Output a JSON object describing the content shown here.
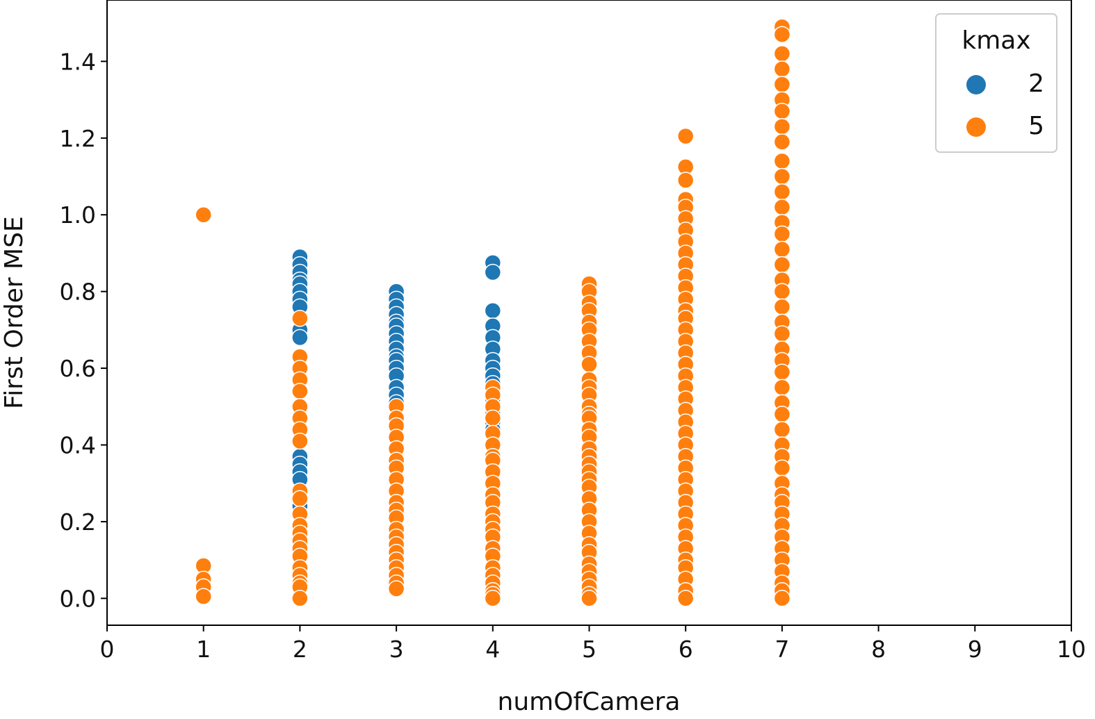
{
  "chart_data": {
    "type": "scatter",
    "title": "",
    "xlabel": "numOfCamera",
    "ylabel": "First Order MSE",
    "xlim": [
      0,
      10
    ],
    "ylim": [
      -0.07,
      1.56
    ],
    "x_ticks": [
      "0",
      "1",
      "2",
      "3",
      "4",
      "5",
      "6",
      "7",
      "8",
      "9",
      "10"
    ],
    "y_ticks": [
      "0.0",
      "0.2",
      "0.4",
      "0.6",
      "0.8",
      "1.0",
      "1.2",
      "1.4"
    ],
    "grid": false,
    "legend": {
      "title": "kmax",
      "placement": "top-right"
    },
    "series": [
      {
        "name": "2",
        "color": "#1f77b4",
        "points": [
          [
            2,
            0.89
          ],
          [
            2,
            0.87
          ],
          [
            2,
            0.85
          ],
          [
            2,
            0.83
          ],
          [
            2,
            0.82
          ],
          [
            2,
            0.8
          ],
          [
            2,
            0.78
          ],
          [
            2,
            0.76
          ],
          [
            2,
            0.7
          ],
          [
            2,
            0.68
          ],
          [
            2,
            0.37
          ],
          [
            2,
            0.35
          ],
          [
            2,
            0.33
          ],
          [
            2,
            0.31
          ],
          [
            2,
            0.24
          ],
          [
            2,
            0.22
          ],
          [
            3,
            0.8
          ],
          [
            3,
            0.78
          ],
          [
            3,
            0.76
          ],
          [
            3,
            0.74
          ],
          [
            3,
            0.72
          ],
          [
            3,
            0.71
          ],
          [
            3,
            0.69
          ],
          [
            3,
            0.67
          ],
          [
            3,
            0.65
          ],
          [
            3,
            0.63
          ],
          [
            3,
            0.62
          ],
          [
            3,
            0.6
          ],
          [
            3,
            0.58
          ],
          [
            3,
            0.55
          ],
          [
            3,
            0.53
          ],
          [
            3,
            0.51
          ],
          [
            4,
            0.875
          ],
          [
            4,
            0.85
          ],
          [
            4,
            0.75
          ],
          [
            4,
            0.71
          ],
          [
            4,
            0.68
          ],
          [
            4,
            0.65
          ],
          [
            4,
            0.62
          ],
          [
            4,
            0.6
          ],
          [
            4,
            0.58
          ],
          [
            4,
            0.56
          ],
          [
            4,
            0.54
          ],
          [
            4,
            0.52
          ],
          [
            4,
            0.5
          ],
          [
            4,
            0.48
          ],
          [
            4,
            0.46
          ],
          [
            4,
            0.44
          ]
        ]
      },
      {
        "name": "5",
        "color": "#ff7f0e",
        "points": [
          [
            1,
            1.0
          ],
          [
            1,
            0.085
          ],
          [
            1,
            0.05
          ],
          [
            1,
            0.03
          ],
          [
            1,
            0.005
          ],
          [
            2,
            0.73
          ],
          [
            2,
            0.63
          ],
          [
            2,
            0.6
          ],
          [
            2,
            0.57
          ],
          [
            2,
            0.54
          ],
          [
            2,
            0.5
          ],
          [
            2,
            0.47
          ],
          [
            2,
            0.44
          ],
          [
            2,
            0.41
          ],
          [
            2,
            0.28
          ],
          [
            2,
            0.26
          ],
          [
            2,
            0.22
          ],
          [
            2,
            0.19
          ],
          [
            2,
            0.17
          ],
          [
            2,
            0.15
          ],
          [
            2,
            0.13
          ],
          [
            2,
            0.11
          ],
          [
            2,
            0.08
          ],
          [
            2,
            0.06
          ],
          [
            2,
            0.04
          ],
          [
            2,
            0.03
          ],
          [
            2,
            0.0
          ],
          [
            3,
            0.5
          ],
          [
            3,
            0.47
          ],
          [
            3,
            0.45
          ],
          [
            3,
            0.42
          ],
          [
            3,
            0.39
          ],
          [
            3,
            0.36
          ],
          [
            3,
            0.34
          ],
          [
            3,
            0.31
          ],
          [
            3,
            0.28
          ],
          [
            3,
            0.25
          ],
          [
            3,
            0.23
          ],
          [
            3,
            0.21
          ],
          [
            3,
            0.18
          ],
          [
            3,
            0.16
          ],
          [
            3,
            0.14
          ],
          [
            3,
            0.12
          ],
          [
            3,
            0.1
          ],
          [
            3,
            0.08
          ],
          [
            3,
            0.06
          ],
          [
            3,
            0.04
          ],
          [
            3,
            0.025
          ],
          [
            4,
            0.55
          ],
          [
            4,
            0.53
          ],
          [
            4,
            0.5
          ],
          [
            4,
            0.47
          ],
          [
            4,
            0.43
          ],
          [
            4,
            0.4
          ],
          [
            4,
            0.37
          ],
          [
            4,
            0.36
          ],
          [
            4,
            0.33
          ],
          [
            4,
            0.3
          ],
          [
            4,
            0.27
          ],
          [
            4,
            0.25
          ],
          [
            4,
            0.22
          ],
          [
            4,
            0.2
          ],
          [
            4,
            0.18
          ],
          [
            4,
            0.16
          ],
          [
            4,
            0.13
          ],
          [
            4,
            0.11
          ],
          [
            4,
            0.08
          ],
          [
            4,
            0.06
          ],
          [
            4,
            0.04
          ],
          [
            4,
            0.02
          ],
          [
            4,
            0.01
          ],
          [
            4,
            0.0
          ],
          [
            5,
            0.82
          ],
          [
            5,
            0.8
          ],
          [
            5,
            0.77
          ],
          [
            5,
            0.75
          ],
          [
            5,
            0.72
          ],
          [
            5,
            0.7
          ],
          [
            5,
            0.67
          ],
          [
            5,
            0.64
          ],
          [
            5,
            0.61
          ],
          [
            5,
            0.57
          ],
          [
            5,
            0.55
          ],
          [
            5,
            0.53
          ],
          [
            5,
            0.5
          ],
          [
            5,
            0.48
          ],
          [
            5,
            0.47
          ],
          [
            5,
            0.44
          ],
          [
            5,
            0.42
          ],
          [
            5,
            0.39
          ],
          [
            5,
            0.37
          ],
          [
            5,
            0.35
          ],
          [
            5,
            0.33
          ],
          [
            5,
            0.31
          ],
          [
            5,
            0.29
          ],
          [
            5,
            0.26
          ],
          [
            5,
            0.23
          ],
          [
            5,
            0.2
          ],
          [
            5,
            0.17
          ],
          [
            5,
            0.14
          ],
          [
            5,
            0.12
          ],
          [
            5,
            0.09
          ],
          [
            5,
            0.07
          ],
          [
            5,
            0.05
          ],
          [
            5,
            0.03
          ],
          [
            5,
            0.01
          ],
          [
            5,
            0.0
          ],
          [
            6,
            1.205
          ],
          [
            6,
            1.125
          ],
          [
            6,
            1.09
          ],
          [
            6,
            1.04
          ],
          [
            6,
            1.02
          ],
          [
            6,
            0.99
          ],
          [
            6,
            0.96
          ],
          [
            6,
            0.93
          ],
          [
            6,
            0.9
          ],
          [
            6,
            0.87
          ],
          [
            6,
            0.84
          ],
          [
            6,
            0.81
          ],
          [
            6,
            0.78
          ],
          [
            6,
            0.75
          ],
          [
            6,
            0.73
          ],
          [
            6,
            0.7
          ],
          [
            6,
            0.67
          ],
          [
            6,
            0.64
          ],
          [
            6,
            0.61
          ],
          [
            6,
            0.58
          ],
          [
            6,
            0.55
          ],
          [
            6,
            0.52
          ],
          [
            6,
            0.49
          ],
          [
            6,
            0.46
          ],
          [
            6,
            0.43
          ],
          [
            6,
            0.4
          ],
          [
            6,
            0.37
          ],
          [
            6,
            0.34
          ],
          [
            6,
            0.31
          ],
          [
            6,
            0.28
          ],
          [
            6,
            0.25
          ],
          [
            6,
            0.22
          ],
          [
            6,
            0.19
          ],
          [
            6,
            0.16
          ],
          [
            6,
            0.13
          ],
          [
            6,
            0.1
          ],
          [
            6,
            0.08
          ],
          [
            6,
            0.05
          ],
          [
            6,
            0.02
          ],
          [
            6,
            0.0
          ],
          [
            7,
            1.49
          ],
          [
            7,
            1.47
          ],
          [
            7,
            1.42
          ],
          [
            7,
            1.38
          ],
          [
            7,
            1.34
          ],
          [
            7,
            1.3
          ],
          [
            7,
            1.27
          ],
          [
            7,
            1.23
          ],
          [
            7,
            1.19
          ],
          [
            7,
            1.14
          ],
          [
            7,
            1.1
          ],
          [
            7,
            1.06
          ],
          [
            7,
            1.02
          ],
          [
            7,
            0.98
          ],
          [
            7,
            0.95
          ],
          [
            7,
            0.91
          ],
          [
            7,
            0.87
          ],
          [
            7,
            0.83
          ],
          [
            7,
            0.8
          ],
          [
            7,
            0.76
          ],
          [
            7,
            0.72
          ],
          [
            7,
            0.69
          ],
          [
            7,
            0.65
          ],
          [
            7,
            0.62
          ],
          [
            7,
            0.59
          ],
          [
            7,
            0.55
          ],
          [
            7,
            0.51
          ],
          [
            7,
            0.48
          ],
          [
            7,
            0.44
          ],
          [
            7,
            0.4
          ],
          [
            7,
            0.37
          ],
          [
            7,
            0.34
          ],
          [
            7,
            0.3
          ],
          [
            7,
            0.27
          ],
          [
            7,
            0.25
          ],
          [
            7,
            0.22
          ],
          [
            7,
            0.19
          ],
          [
            7,
            0.16
          ],
          [
            7,
            0.13
          ],
          [
            7,
            0.1
          ],
          [
            7,
            0.07
          ],
          [
            7,
            0.04
          ],
          [
            7,
            0.02
          ],
          [
            7,
            0.0
          ]
        ]
      }
    ]
  }
}
